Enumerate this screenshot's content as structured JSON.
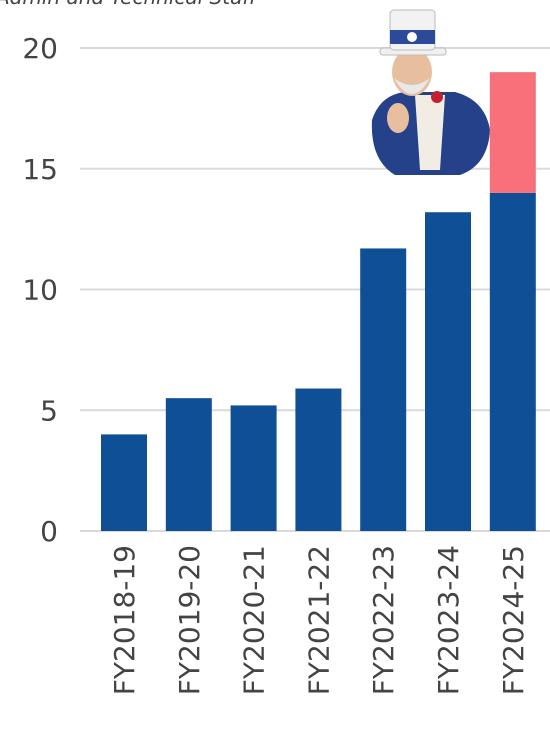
{
  "chart_data": {
    "type": "stacked_bar",
    "subtitle": "Admin and Technical Staff",
    "categories": [
      "FY2018-19",
      "FY2019-20",
      "FY2020-21",
      "FY2021-22",
      "FY2022-23",
      "FY2023-24",
      "FY2024-25"
    ],
    "series": [
      {
        "color": "#0f4f96",
        "values": [
          4.0,
          5.5,
          5.2,
          5.9,
          11.7,
          13.2,
          14.0
        ]
      },
      {
        "color": "#f7707a",
        "values": [
          null,
          null,
          null,
          null,
          null,
          null,
          5.0
        ]
      }
    ],
    "ylim": [
      0,
      20
    ],
    "yticks": [
      0,
      5,
      10,
      15,
      20
    ],
    "grid": true
  }
}
